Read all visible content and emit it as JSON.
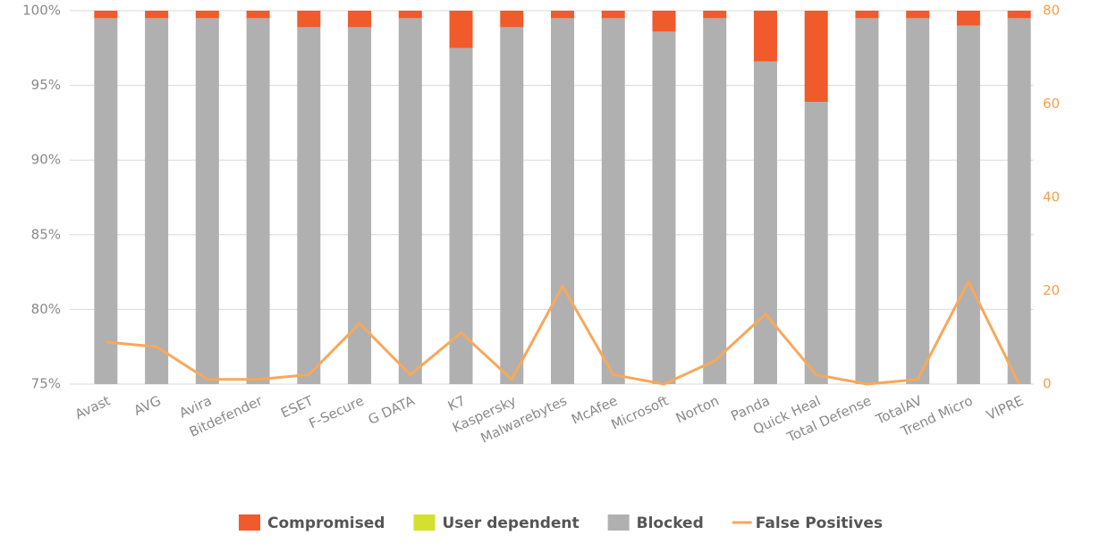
{
  "chart_data": {
    "type": "bar",
    "categories": [
      "Avast",
      "AVG",
      "Avira",
      "Bitdefender",
      "ESET",
      "F-Secure",
      "G DATA",
      "K7",
      "Kaspersky",
      "Malwarebytes",
      "McAfee",
      "Microsoft",
      "Norton",
      "Panda",
      "Quick Heal",
      "Total Defense",
      "TotalAV",
      "Trend Micro",
      "VIPRE"
    ],
    "series": [
      {
        "name": "Compromised",
        "type": "bar",
        "color": "#f15a2b",
        "values": [
          0.5,
          0.5,
          0.5,
          0.5,
          1.1,
          1.1,
          0.5,
          2.5,
          1.1,
          0.5,
          0.5,
          1.4,
          0.5,
          3.4,
          6.1,
          0.5,
          0.5,
          1.0,
          0.5
        ]
      },
      {
        "name": "User dependent",
        "type": "bar",
        "color": "#d4e02f",
        "values": [
          0,
          0,
          0,
          0,
          0,
          0,
          0,
          0,
          0,
          0,
          0,
          0,
          0,
          0,
          0,
          0,
          0,
          0,
          0
        ]
      },
      {
        "name": "Blocked",
        "type": "bar",
        "color": "#b0b0b0",
        "values": [
          99.5,
          99.5,
          99.5,
          99.5,
          98.9,
          98.9,
          99.5,
          97.5,
          98.9,
          99.5,
          99.5,
          98.6,
          99.5,
          96.6,
          93.9,
          99.5,
          99.5,
          99.0,
          99.5
        ]
      },
      {
        "name": "False Positives",
        "type": "line",
        "axis": "y2",
        "color": "#f7a85a",
        "values": [
          9,
          8,
          1,
          1,
          2,
          13,
          2,
          11,
          1,
          21,
          2,
          0,
          5,
          15,
          2,
          0,
          1,
          22,
          0
        ]
      }
    ],
    "ylim": [
      75,
      100
    ],
    "yticks": [
      {
        "value": 75,
        "label": "75%"
      },
      {
        "value": 80,
        "label": "80%"
      },
      {
        "value": 85,
        "label": "85%"
      },
      {
        "value": 90,
        "label": "90%"
      },
      {
        "value": 95,
        "label": "95%"
      },
      {
        "value": 100,
        "label": "100%"
      }
    ],
    "y2lim": [
      0,
      80
    ],
    "y2ticks": [
      0,
      20,
      40,
      60,
      80
    ],
    "grid": true,
    "legend": "bottom"
  }
}
